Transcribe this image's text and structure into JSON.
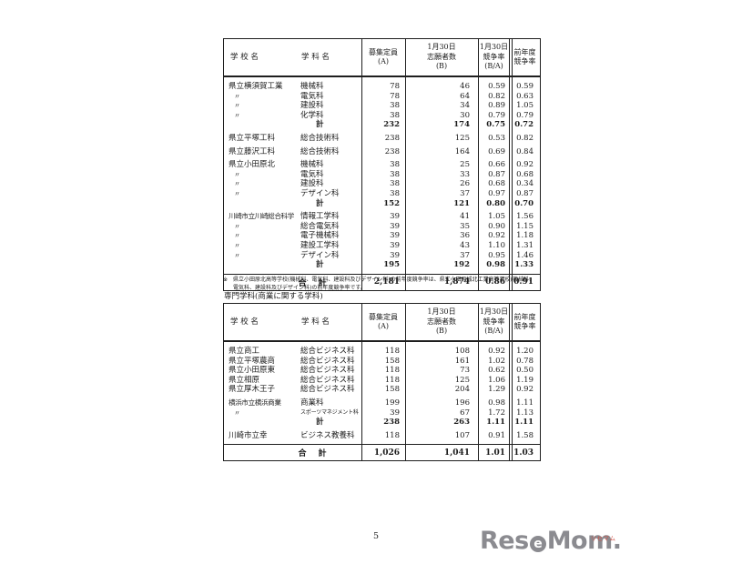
{
  "page": {
    "number": "5"
  },
  "columns": {
    "school": "学 校 名",
    "dept": "学 科 名",
    "capacity_l1": "募集定員",
    "capacity_l2": "(A)",
    "applicants_l1": "1月30日",
    "applicants_l2": "志願者数",
    "applicants_l3": "(B)",
    "ratio_l1": "1月30日",
    "ratio_l2": "競争率",
    "ratio_l3": "(B/A)",
    "prev_l1": "前年度",
    "prev_l2": "競争率"
  },
  "table1": {
    "rows": [
      {
        "school": "県立横須賀工業",
        "dept": "機械科",
        "a": "78",
        "b": "46",
        "ba": "0.59",
        "prev": "0.59"
      },
      {
        "school": "〃",
        "dept": "電気科",
        "a": "78",
        "b": "64",
        "ba": "0.82",
        "prev": "0.63"
      },
      {
        "school": "〃",
        "dept": "建設科",
        "a": "38",
        "b": "34",
        "ba": "0.89",
        "prev": "1.05"
      },
      {
        "school": "〃",
        "dept": "化学科",
        "a": "38",
        "b": "30",
        "ba": "0.79",
        "prev": "0.79"
      },
      {
        "school": "",
        "dept": "計",
        "a": "232",
        "b": "174",
        "ba": "0.75",
        "prev": "0.72",
        "bold": true
      },
      {
        "gap": true
      },
      {
        "school": "県立平塚工科",
        "dept": "総合技術科",
        "a": "238",
        "b": "125",
        "ba": "0.53",
        "prev": "0.82"
      },
      {
        "gap": true
      },
      {
        "school": "県立藤沢工科",
        "dept": "総合技術科",
        "a": "238",
        "b": "164",
        "ba": "0.69",
        "prev": "0.84"
      },
      {
        "gap": true
      },
      {
        "school": "県立小田原北",
        "dept": "機械科",
        "a": "38",
        "b": "25",
        "ba": "0.66",
        "prev": "0.92"
      },
      {
        "school": "〃",
        "dept": "電気科",
        "a": "38",
        "b": "33",
        "ba": "0.87",
        "prev": "0.68"
      },
      {
        "school": "〃",
        "dept": "建設科",
        "a": "38",
        "b": "26",
        "ba": "0.68",
        "prev": "0.34"
      },
      {
        "school": "〃",
        "dept": "デザイン科",
        "a": "38",
        "b": "37",
        "ba": "0.97",
        "prev": "0.87"
      },
      {
        "school": "",
        "dept": "計",
        "a": "152",
        "b": "121",
        "ba": "0.80",
        "prev": "0.70",
        "bold": true
      },
      {
        "gap": true
      },
      {
        "school": "川崎市立川崎総合科学",
        "dept": "情報工学科",
        "a": "39",
        "b": "41",
        "ba": "1.05",
        "prev": "1.56"
      },
      {
        "school": "〃",
        "dept": "総合電気科",
        "a": "39",
        "b": "35",
        "ba": "0.90",
        "prev": "1.15"
      },
      {
        "school": "〃",
        "dept": "電子機械科",
        "a": "39",
        "b": "36",
        "ba": "0.92",
        "prev": "1.18"
      },
      {
        "school": "〃",
        "dept": "建設工学科",
        "a": "39",
        "b": "43",
        "ba": "1.10",
        "prev": "1.31"
      },
      {
        "school": "〃",
        "dept": "デザイン科",
        "a": "39",
        "b": "37",
        "ba": "0.95",
        "prev": "1.46"
      },
      {
        "school": "",
        "dept": "計",
        "a": "195",
        "b": "192",
        "ba": "0.98",
        "prev": "1.33",
        "bold": true
      }
    ],
    "total": {
      "label": "合　計",
      "a": "2,181",
      "b": "1,874",
      "ba": "0.86",
      "prev": "0.91"
    }
  },
  "footnote": {
    "mark": "※",
    "line1": "県立小田原北高等学校(機械科、電気科、建設科及びデザイン科)の前年度競争率は、県立小田原城北工業高等学校(機械科、",
    "line2": "電気科、建設科及びデザイン科)の前年度競争率です。"
  },
  "section2_title": "専門学科(商業に関する学科)",
  "table2": {
    "rows": [
      {
        "school": "県立商工",
        "dept": "総合ビジネス科",
        "a": "118",
        "b": "108",
        "ba": "0.92",
        "prev": "1.20"
      },
      {
        "school": "県立平塚農商",
        "dept": "総合ビジネス科",
        "a": "158",
        "b": "161",
        "ba": "1.02",
        "prev": "0.78"
      },
      {
        "school": "県立小田原東",
        "dept": "総合ビジネス科",
        "a": "118",
        "b": "73",
        "ba": "0.62",
        "prev": "0.50"
      },
      {
        "school": "県立相原",
        "dept": "総合ビジネス科",
        "a": "118",
        "b": "125",
        "ba": "1.06",
        "prev": "1.19"
      },
      {
        "school": "県立厚木王子",
        "dept": "総合ビジネス科",
        "a": "158",
        "b": "204",
        "ba": "1.29",
        "prev": "0.92"
      },
      {
        "gap": true
      },
      {
        "school": "横浜市立横浜商業",
        "dept": "商業科",
        "a": "199",
        "b": "196",
        "ba": "0.98",
        "prev": "1.11"
      },
      {
        "school": "〃",
        "dept": "スポーツマネジメント科",
        "a": "39",
        "b": "67",
        "ba": "1.72",
        "prev": "1.13"
      },
      {
        "school": "",
        "dept": "計",
        "a": "238",
        "b": "263",
        "ba": "1.11",
        "prev": "1.11",
        "bold": true
      },
      {
        "gap": true
      },
      {
        "school": "川崎市立幸",
        "dept": "ビジネス教養科",
        "a": "118",
        "b": "107",
        "ba": "0.91",
        "prev": "1.58"
      }
    ],
    "total": {
      "label": "合　計",
      "a": "1,026",
      "b": "1,041",
      "ba": "1.01",
      "prev": "1.03"
    }
  },
  "logo": {
    "pre": "Res",
    "ball": "e",
    "post": "Mom",
    "dot": ".",
    "ruby": "リセマム",
    "color": "#8b8b90",
    "ruby_color": "#d0544a"
  }
}
